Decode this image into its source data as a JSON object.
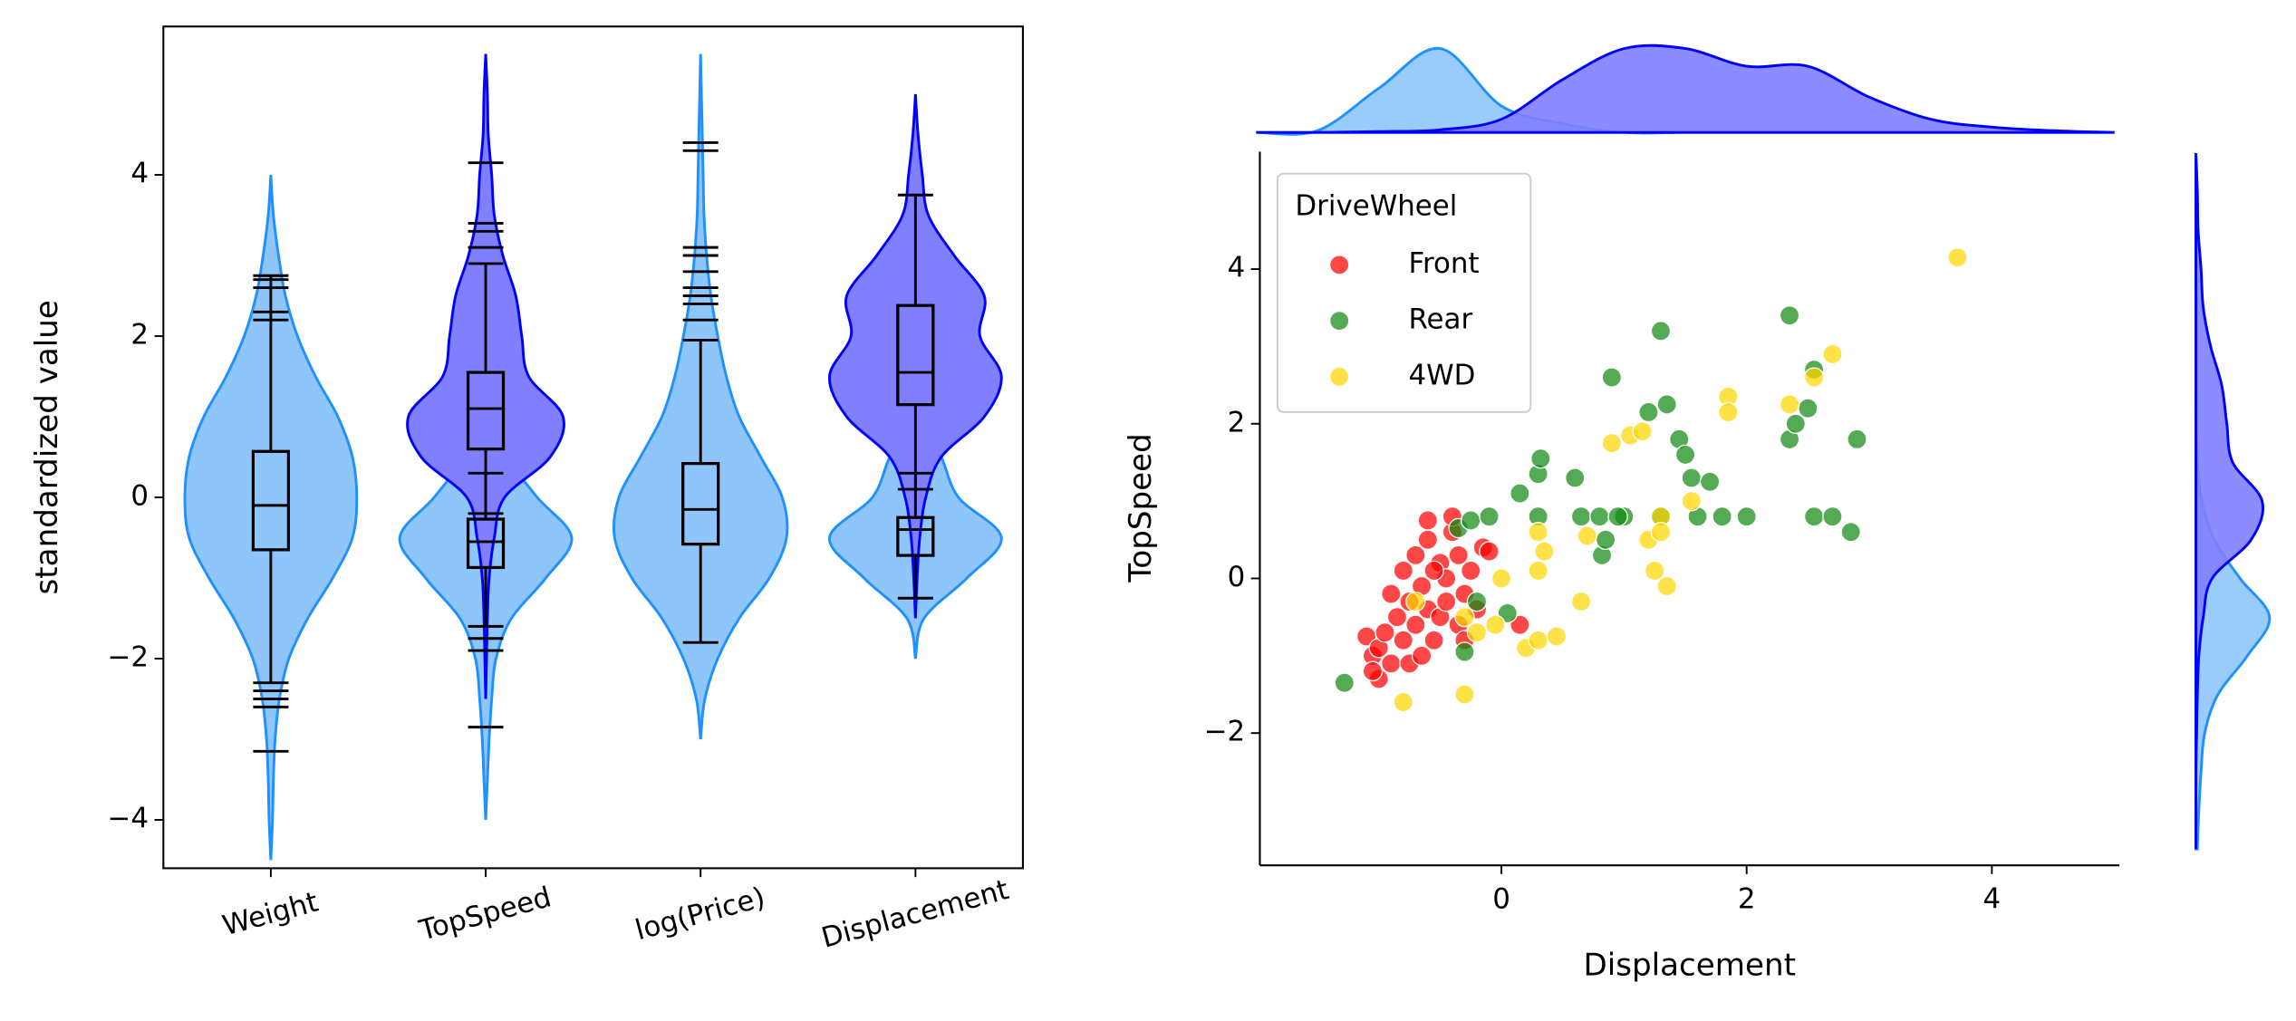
{
  "chart_data": [
    {
      "type": "violin",
      "ylabel": "standardized value",
      "categories": [
        "Weight",
        "TopSpeed",
        "log(Price)",
        "Displacement"
      ],
      "ylim": [
        -4.6,
        5.84
      ],
      "yticks": [
        {
          "value": -4,
          "label": "−4"
        },
        {
          "value": -2,
          "label": "−2"
        },
        0,
        2,
        4
      ],
      "density_grid": [
        -4.5,
        -4,
        -3.5,
        -3,
        -2.5,
        -2,
        -1.5,
        -1,
        -0.5,
        0,
        0.5,
        1,
        1.5,
        2,
        2.5,
        3,
        3.5,
        4,
        4.5,
        5,
        5.5
      ],
      "series": [
        {
          "color": "#1e90ff",
          "fill_color": "#8ec5fb",
          "violins": [
            {
              "density": [
                0,
                0.02,
                0.03,
                0.05,
                0.1,
                0.21,
                0.43,
                0.72,
                0.95,
                1.0,
                0.95,
                0.78,
                0.52,
                0.31,
                0.17,
                0.09,
                0.03,
                0,
                0,
                0,
                0
              ],
              "box": {
                "whislo": -2.3,
                "q1": -0.65,
                "med": -0.1,
                "q3": 0.57,
                "whishi": 2.75,
                "fliers": [
                  2.7,
                  2.6,
                  2.3,
                  2.2,
                  -2.4,
                  -2.5,
                  -2.6,
                  -3.15
                ]
              }
            },
            {
              "density": [
                0,
                0,
                0.02,
                0.04,
                0.07,
                0.12,
                0.3,
                0.7,
                1.0,
                0.6,
                0.25,
                0.08,
                0.02,
                0,
                0,
                0,
                0,
                0,
                0,
                0,
                0
              ],
              "box": {
                "whislo": -1.6,
                "q1": -0.87,
                "med": -0.55,
                "q3": -0.27,
                "whishi": 0.3,
                "fliers": [
                  -1.75,
                  -1.9,
                  -2.85
                ]
              }
            },
            {
              "density": [
                0,
                0,
                0,
                0,
                0.05,
                0.2,
                0.45,
                0.8,
                1.0,
                0.95,
                0.7,
                0.45,
                0.3,
                0.2,
                0.12,
                0.07,
                0.04,
                0.03,
                0.02,
                0.01,
                0
              ],
              "box": {
                "whislo": -1.8,
                "q1": -0.58,
                "med": -0.15,
                "q3": 0.42,
                "whishi": 1.95,
                "fliers": [
                  2.2,
                  2.4,
                  2.5,
                  2.6,
                  2.8,
                  3.0,
                  3.1,
                  4.3,
                  4.4
                ]
              }
            },
            {
              "density": [
                0,
                0,
                0,
                0,
                0,
                0,
                0.1,
                0.6,
                1.0,
                0.5,
                0.3,
                0.05,
                0,
                0,
                0,
                0,
                0,
                0,
                0,
                0,
                0
              ],
              "box": {
                "whislo": -1.25,
                "q1": -0.72,
                "med": -0.4,
                "q3": -0.25,
                "whishi": 0.3,
                "fliers": []
              }
            }
          ]
        },
        {
          "color": "#0000ff",
          "fill_color": "#7f7fff",
          "violins": [
            null,
            {
              "density": [
                0,
                0,
                0,
                0,
                0,
                0.01,
                0.02,
                0.04,
                0.1,
                0.22,
                0.75,
                0.9,
                0.5,
                0.42,
                0.35,
                0.2,
                0.1,
                0.07,
                0.03,
                0.02,
                0
              ],
              "box": {
                "whislo": -0.2,
                "q1": 0.6,
                "med": 1.1,
                "q3": 1.55,
                "whishi": 2.9,
                "fliers": [
                  3.1,
                  3.3,
                  3.4,
                  4.15
                ]
              }
            },
            null,
            {
              "density": [
                0,
                0,
                0,
                0,
                0,
                0,
                0,
                0.02,
                0.05,
                0.12,
                0.3,
                0.8,
                1.0,
                0.75,
                0.8,
                0.45,
                0.15,
                0.08,
                0.03,
                0,
                0
              ],
              "box": {
                "whislo": 0.1,
                "q1": 1.15,
                "med": 1.55,
                "q3": 2.38,
                "whishi": 3.75,
                "fliers": []
              }
            }
          ]
        }
      ]
    },
    {
      "type": "scatter",
      "xlabel": "Displacement",
      "ylabel": "TopSpeed",
      "xlim": [
        -1.97,
        5.04
      ],
      "ylim": [
        -3.71,
        5.52
      ],
      "xticks": [
        0,
        2,
        4
      ],
      "yticks": [
        {
          "value": -2,
          "label": "−2"
        },
        0,
        2,
        4
      ],
      "legend": {
        "title": "DriveWheel",
        "loc": "upper left"
      },
      "series": [
        {
          "name": "Front",
          "color": "#ff0000",
          "x": [
            -1.1,
            -1.05,
            -1.0,
            -1.0,
            -0.95,
            -0.9,
            -0.85,
            -0.8,
            -0.8,
            -0.75,
            -0.75,
            -0.7,
            -0.7,
            -0.65,
            -0.65,
            -0.6,
            -0.6,
            -0.6,
            -0.55,
            -0.5,
            -0.5,
            -0.45,
            -0.45,
            -0.4,
            -0.4,
            -0.35,
            -0.35,
            -0.3,
            -0.25,
            -0.2,
            -0.15,
            -0.1,
            0.15,
            -0.9,
            -1.05,
            -0.55,
            -0.3
          ],
          "y": [
            -0.75,
            -1.0,
            -1.3,
            -0.9,
            -0.7,
            -1.1,
            -0.5,
            -0.8,
            0.1,
            -1.1,
            -0.3,
            -0.6,
            0.3,
            -1.0,
            -0.1,
            0.5,
            -0.4,
            0.75,
            -0.8,
            0.2,
            -0.5,
            0.0,
            -0.3,
            0.6,
            0.8,
            -0.6,
            0.3,
            -0.2,
            0.1,
            -0.4,
            0.4,
            0.35,
            -0.6,
            -0.2,
            -1.2,
            0.1,
            -0.8
          ]
        },
        {
          "name": "Rear",
          "color": "#138a13",
          "x": [
            -1.28,
            -0.3,
            -0.2,
            0.05,
            -0.35,
            -0.25,
            -0.1,
            0.15,
            0.3,
            0.3,
            0.32,
            0.6,
            0.65,
            0.8,
            0.82,
            0.85,
            0.9,
            1.0,
            1.2,
            1.3,
            1.35,
            1.3,
            1.45,
            1.5,
            1.55,
            1.6,
            1.7,
            1.8,
            2.0,
            2.35,
            2.35,
            2.4,
            2.5,
            2.55,
            2.55,
            2.7,
            2.85,
            2.9,
            0.95
          ],
          "y": [
            -1.35,
            -0.95,
            -0.3,
            -0.45,
            0.65,
            0.75,
            0.8,
            1.1,
            0.8,
            1.35,
            1.55,
            1.3,
            0.8,
            0.8,
            0.3,
            0.5,
            2.6,
            0.8,
            2.15,
            0.8,
            2.25,
            3.2,
            1.8,
            1.6,
            1.3,
            0.8,
            1.25,
            0.8,
            0.8,
            1.8,
            3.4,
            2.0,
            2.2,
            0.8,
            2.7,
            0.8,
            0.6,
            1.8,
            0.8
          ]
        },
        {
          "name": "4WD",
          "color": "#ffd700",
          "x": [
            -0.8,
            -0.7,
            -0.3,
            -0.3,
            -0.2,
            -0.05,
            0.0,
            0.2,
            0.3,
            0.3,
            0.35,
            0.45,
            0.65,
            0.7,
            0.9,
            1.05,
            1.15,
            1.2,
            1.25,
            1.3,
            1.35,
            1.55,
            1.85,
            1.85,
            2.35,
            2.55,
            2.7,
            3.72,
            1.3,
            0.3
          ],
          "y": [
            -1.6,
            -0.3,
            -1.5,
            -0.5,
            -0.7,
            -0.6,
            0.0,
            -0.9,
            -0.8,
            0.1,
            0.35,
            -0.75,
            -0.3,
            0.55,
            1.75,
            1.85,
            1.9,
            0.5,
            0.1,
            0.8,
            -0.1,
            1.0,
            2.35,
            2.15,
            2.25,
            2.6,
            2.9,
            4.15,
            0.6,
            0.6
          ]
        }
      ],
      "x_marginal": {
        "grid": [
          -2,
          -1.5,
          -1,
          -0.5,
          0,
          0.5,
          1,
          1.5,
          2,
          2.5,
          3,
          3.5,
          4,
          4.5,
          5
        ],
        "series": [
          {
            "color": "#1e90ff",
            "fill_color": "#8ec5fb",
            "values": [
              0,
              0.02,
              0.5,
              0.95,
              0.3,
              0.1,
              0,
              0,
              0,
              0,
              0,
              0,
              0,
              0,
              0
            ]
          },
          {
            "color": "#0000ff",
            "fill_color": "#7f7fff",
            "values": [
              0,
              0,
              0.01,
              0.03,
              0.15,
              0.6,
              0.95,
              0.95,
              0.75,
              0.75,
              0.4,
              0.15,
              0.06,
              0.02,
              0
            ]
          }
        ]
      },
      "y_marginal": {
        "grid": [
          -3.5,
          -3,
          -2.5,
          -2,
          -1.5,
          -1,
          -0.5,
          0,
          0.5,
          1,
          1.5,
          2,
          2.5,
          3,
          3.5,
          4,
          4.5,
          5,
          5.5
        ],
        "series": [
          {
            "color": "#1e90ff",
            "fill_color": "#8ec5fb",
            "values": [
              0.02,
              0.04,
              0.07,
              0.12,
              0.3,
              0.7,
              1.0,
              0.6,
              0.25,
              0.08,
              0.02,
              0,
              0,
              0,
              0,
              0,
              0,
              0,
              0
            ]
          },
          {
            "color": "#0000ff",
            "fill_color": "#7f7fff",
            "values": [
              0,
              0,
              0,
              0.01,
              0.02,
              0.04,
              0.1,
              0.22,
              0.75,
              0.9,
              0.5,
              0.42,
              0.35,
              0.2,
              0.1,
              0.07,
              0.03,
              0.02,
              0
            ]
          }
        ]
      }
    }
  ]
}
